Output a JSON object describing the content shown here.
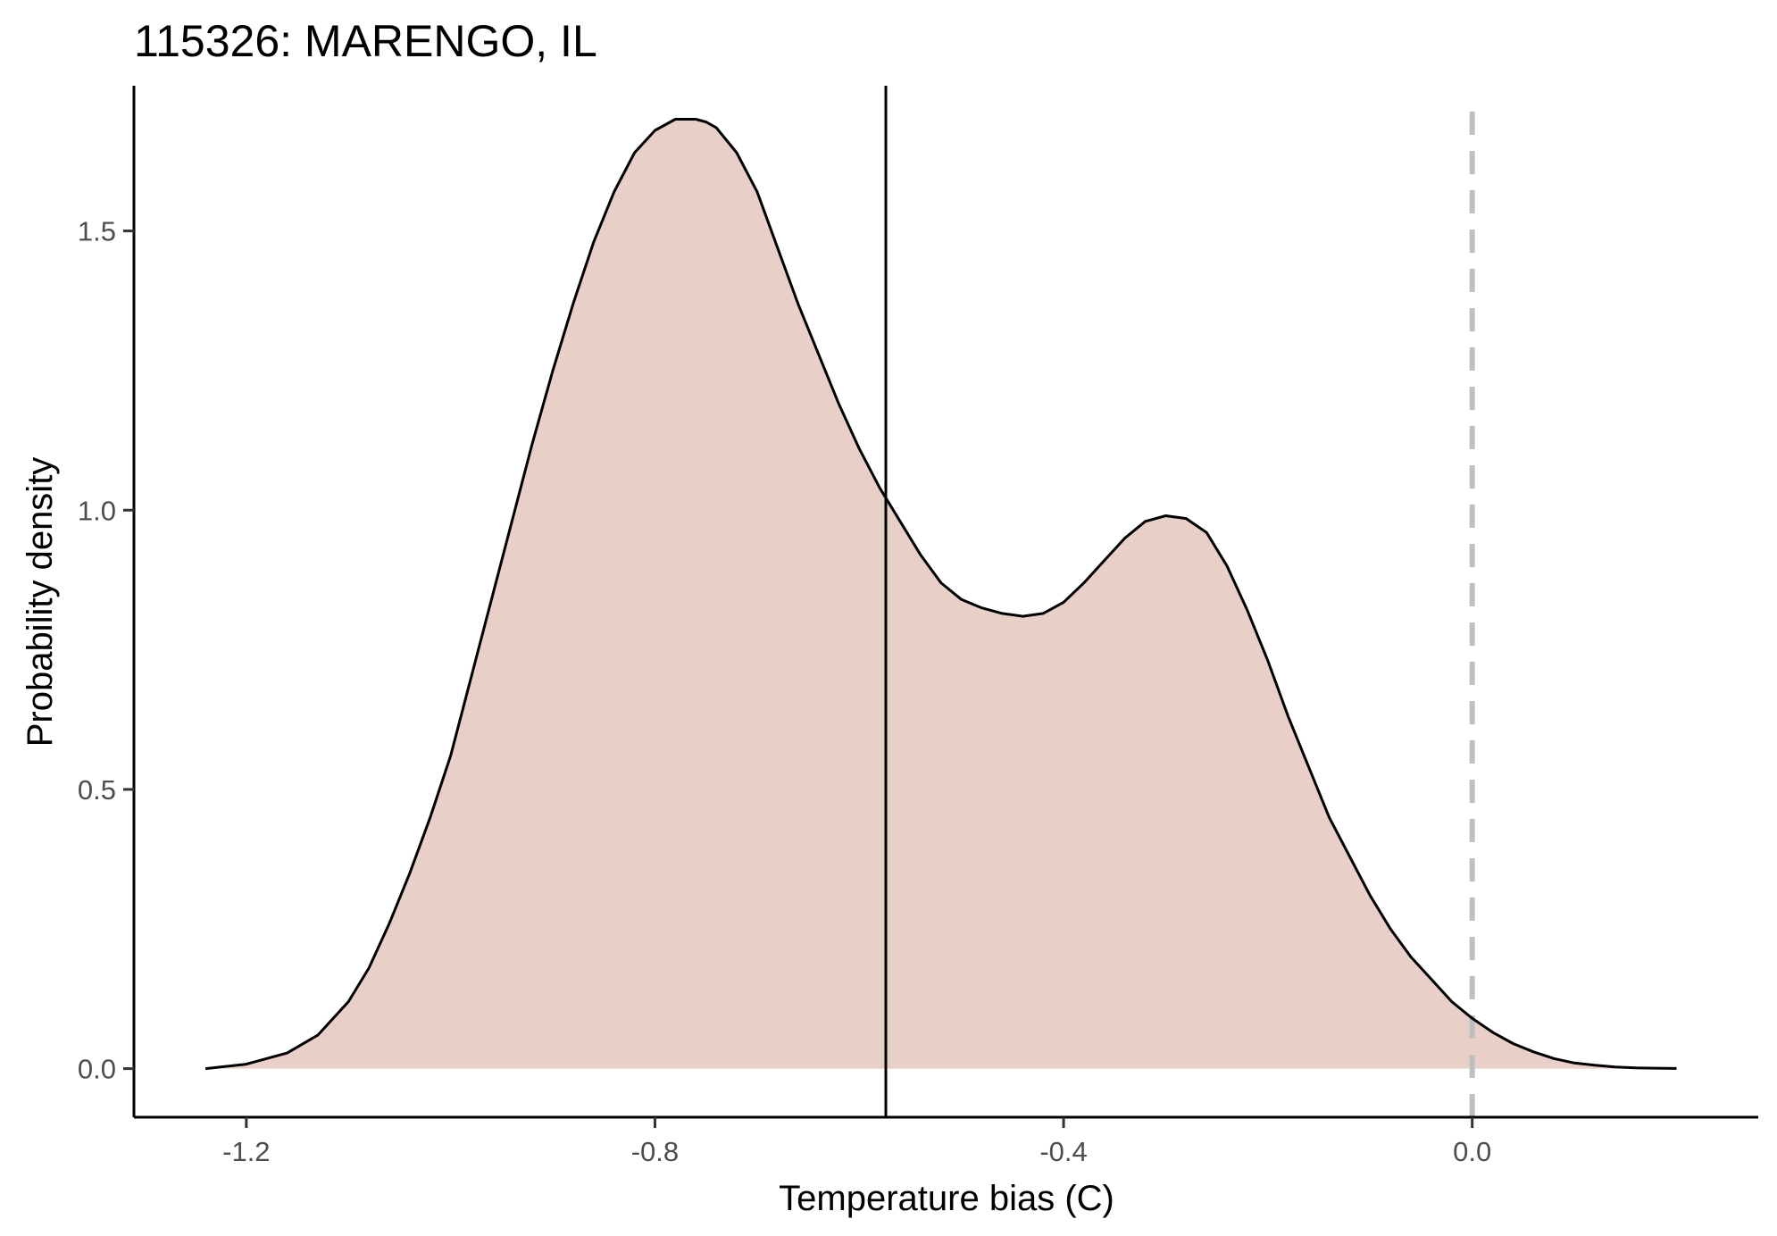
{
  "chart_data": {
    "type": "area",
    "title": "115326: MARENGO, IL",
    "xlabel": "Temperature bias (C)",
    "ylabel": "Probability density",
    "xlim": [
      -1.31,
      0.28
    ],
    "ylim": [
      -0.087,
      1.76
    ],
    "x_ticks": [
      -1.2,
      -0.8,
      -0.4,
      0.0
    ],
    "x_tick_labels": [
      "-1.2",
      "-0.8",
      "-0.4",
      "0.0"
    ],
    "y_ticks": [
      0.0,
      0.5,
      1.0,
      1.5
    ],
    "y_tick_labels": [
      "0.0",
      "0.5",
      "1.0",
      "1.5"
    ],
    "grid": false,
    "legend": "none",
    "fill_color": "#e8cfc8",
    "line_color": "#000000",
    "series": [
      {
        "x": [
          -1.24,
          -1.2,
          -1.16,
          -1.13,
          -1.1,
          -1.08,
          -1.06,
          -1.04,
          -1.02,
          -1.0,
          -0.98,
          -0.96,
          -0.94,
          -0.92,
          -0.9,
          -0.88,
          -0.86,
          -0.84,
          -0.82,
          -0.8,
          -0.78,
          -0.76,
          -0.75,
          -0.74,
          -0.72,
          -0.7,
          -0.68,
          -0.66,
          -0.64,
          -0.62,
          -0.6,
          -0.58,
          -0.56,
          -0.54,
          -0.52,
          -0.5,
          -0.48,
          -0.46,
          -0.44,
          -0.42,
          -0.4,
          -0.38,
          -0.36,
          -0.34,
          -0.32,
          -0.3,
          -0.28,
          -0.26,
          -0.24,
          -0.22,
          -0.2,
          -0.18,
          -0.16,
          -0.14,
          -0.12,
          -0.1,
          -0.08,
          -0.06,
          -0.04,
          -0.02,
          0.0,
          0.02,
          0.04,
          0.06,
          0.08,
          0.1,
          0.12,
          0.14,
          0.16,
          0.18,
          0.2
        ],
        "y": [
          0.0,
          0.008,
          0.028,
          0.06,
          0.12,
          0.18,
          0.26,
          0.35,
          0.45,
          0.56,
          0.7,
          0.84,
          0.98,
          1.12,
          1.25,
          1.37,
          1.48,
          1.57,
          1.64,
          1.68,
          1.7,
          1.7,
          1.695,
          1.685,
          1.64,
          1.57,
          1.47,
          1.37,
          1.28,
          1.19,
          1.11,
          1.04,
          0.98,
          0.92,
          0.87,
          0.84,
          0.825,
          0.815,
          0.81,
          0.815,
          0.835,
          0.87,
          0.91,
          0.95,
          0.98,
          0.99,
          0.985,
          0.96,
          0.9,
          0.82,
          0.73,
          0.63,
          0.54,
          0.45,
          0.38,
          0.31,
          0.25,
          0.2,
          0.16,
          0.12,
          0.09,
          0.065,
          0.045,
          0.03,
          0.018,
          0.01,
          0.006,
          0.003,
          0.0015,
          0.0008,
          0.0003
        ]
      }
    ],
    "vlines": [
      {
        "x": -0.574,
        "style": "solid",
        "color": "#000000"
      },
      {
        "x": 0.0,
        "style": "dashed",
        "color": "#bebebe"
      }
    ]
  }
}
